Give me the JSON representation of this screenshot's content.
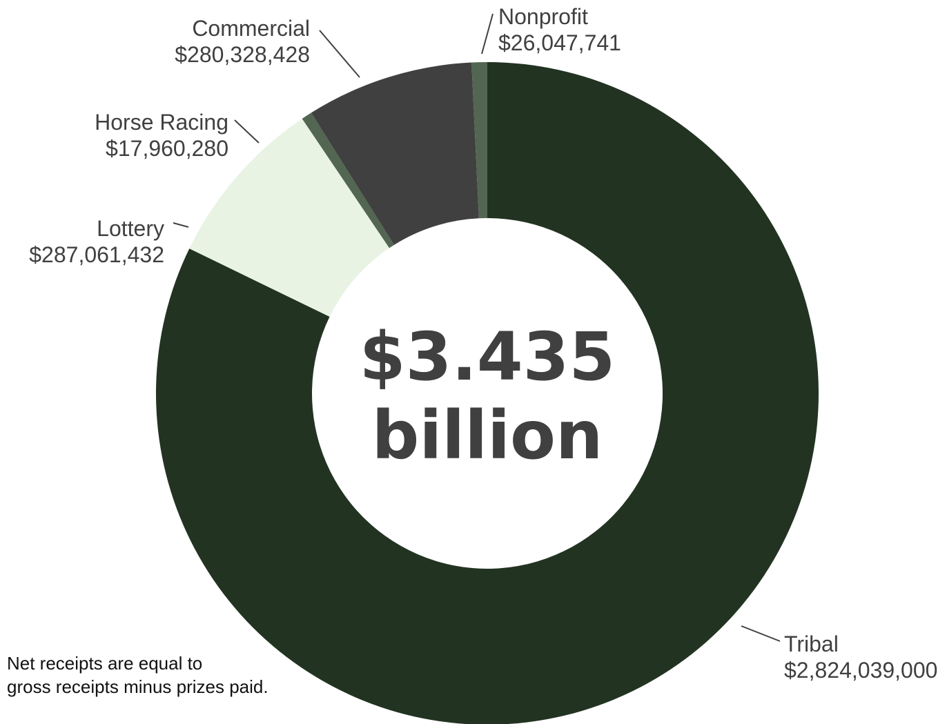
{
  "chart_data": {
    "type": "pie",
    "variant": "donut",
    "center_label": [
      "$3.435",
      "billion"
    ],
    "slices": [
      {
        "name": "Tribal",
        "value": 2824039000,
        "value_label": "$2,824,039,000",
        "color": "#223322"
      },
      {
        "name": "Lottery",
        "value": 287061432,
        "value_label": "$287,061,432",
        "color": "#e8f3e4"
      },
      {
        "name": "Horse Racing",
        "value": 17960280,
        "value_label": "$17,960,280",
        "color": "#526652"
      },
      {
        "name": "Commercial",
        "value": 280328428,
        "value_label": "$280,328,428",
        "color": "#404040"
      },
      {
        "name": "Nonprofit",
        "value": 26047741,
        "value_label": "$26,047,741",
        "color": "#526652"
      }
    ],
    "legend": "none"
  },
  "footnote": {
    "line1": "Net receipts are equal to",
    "line2": "gross receipts minus prizes paid."
  }
}
